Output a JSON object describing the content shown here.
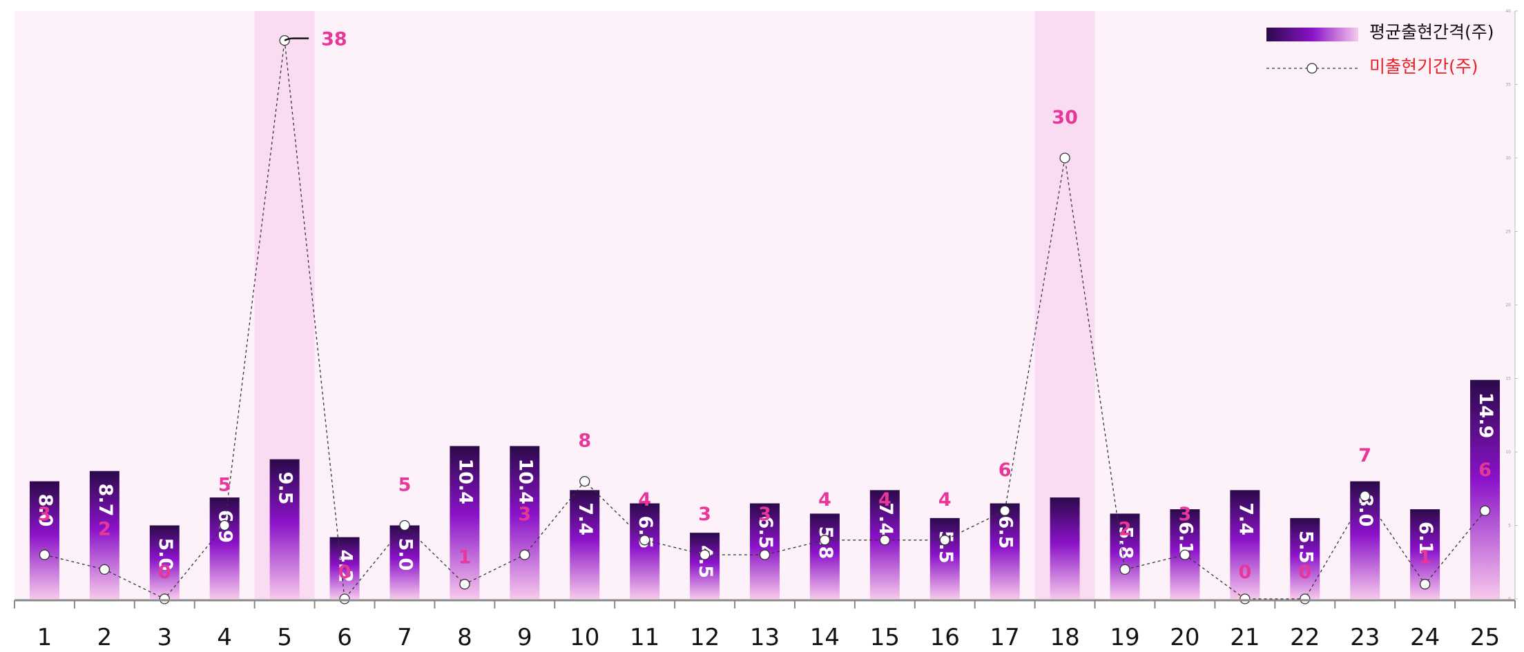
{
  "chart_data": {
    "type": "bar",
    "categories": [
      "1",
      "2",
      "3",
      "4",
      "5",
      "6",
      "7",
      "8",
      "9",
      "10",
      "11",
      "12",
      "13",
      "14",
      "15",
      "16",
      "17",
      "18",
      "19",
      "20",
      "21",
      "22",
      "23",
      "24",
      "25"
    ],
    "series": [
      {
        "name": "평균출현간격(주)",
        "type": "bar",
        "values": [
          8.0,
          8.7,
          5.0,
          6.9,
          9.5,
          4.2,
          5.0,
          10.4,
          10.4,
          7.4,
          6.5,
          4.5,
          6.5,
          5.8,
          7.4,
          5.5,
          6.5,
          6.9,
          5.8,
          6.1,
          7.4,
          5.5,
          8.0,
          6.1,
          14.9
        ],
        "labels": [
          "8.0",
          "8.7",
          "5.0",
          "6.9",
          "9.5",
          "4.2",
          "5.0",
          "10.4",
          "10.4",
          "7.4",
          "6.5",
          "4.5",
          "6.5",
          "5.8",
          "7.4",
          "5.5",
          "6.5",
          "",
          "5.8",
          "6.1",
          "7.4",
          "5.5",
          "8.0",
          "6.1",
          "14.9"
        ],
        "color_top": "#2b0a4a",
        "color_mid": "#8a12c8",
        "color_bottom": "#f7c8ec"
      },
      {
        "name": "미출현기간(주)",
        "type": "line",
        "values": [
          3,
          2,
          0,
          5,
          38,
          0,
          5,
          1,
          3,
          8,
          4,
          3,
          3,
          4,
          4,
          4,
          6,
          30,
          2,
          3,
          0,
          0,
          7,
          1,
          6
        ],
        "labels": [
          "3",
          "2",
          "0",
          "5",
          "38",
          "0",
          "5",
          "1",
          "3",
          "8",
          "4",
          "3",
          "3",
          "4",
          "4",
          "4",
          "6",
          "30",
          "2",
          "3",
          "0",
          "0",
          "7",
          "1",
          "6"
        ],
        "color": "#e8379a"
      }
    ],
    "highlighted_categories": [
      "5",
      "18"
    ],
    "ylim": [
      0,
      40
    ],
    "yticks": [
      "0",
      "5",
      "10",
      "15",
      "20",
      "25",
      "30",
      "35",
      "40"
    ],
    "legend_position": "top-right",
    "colors": {
      "plot_background": "#fdf1fa",
      "highlight_band": "#f9dcf1",
      "axis": "#888888"
    }
  }
}
